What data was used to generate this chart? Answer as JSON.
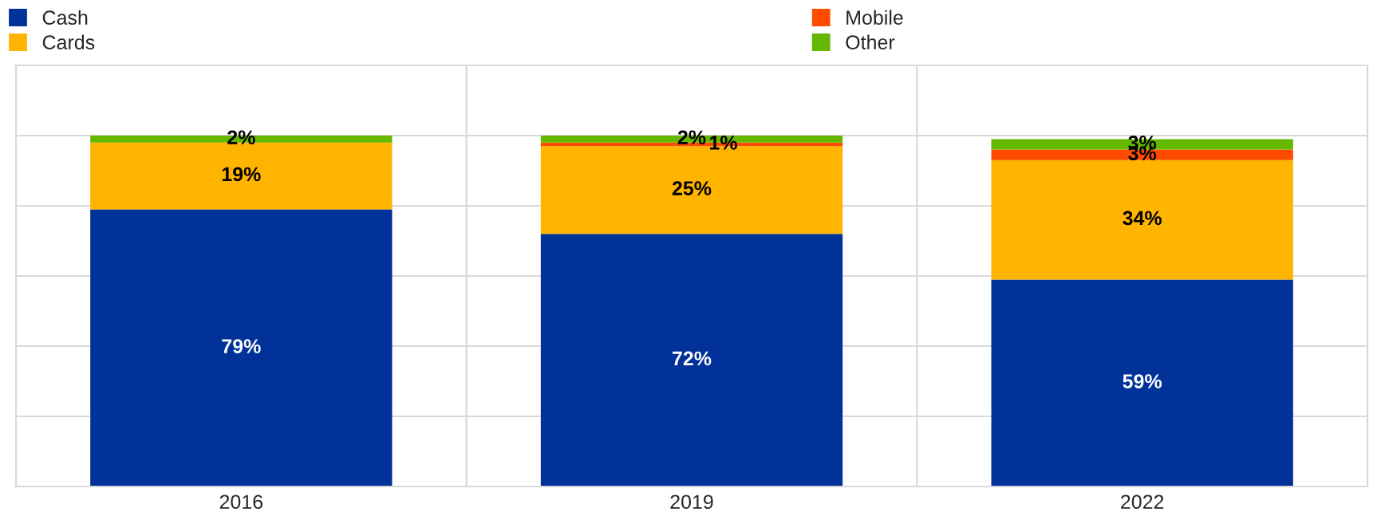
{
  "chart_data": {
    "type": "bar",
    "stacked": true,
    "categories": [
      "2016",
      "2019",
      "2022"
    ],
    "series": [
      {
        "name": "Cash",
        "color": "#003299",
        "values": [
          79,
          72,
          59
        ],
        "value_labels": [
          "79%",
          "72%",
          "59%"
        ]
      },
      {
        "name": "Cards",
        "color": "#ffb400",
        "values": [
          19,
          25,
          34
        ],
        "value_labels": [
          "19%",
          "25%",
          "34%"
        ]
      },
      {
        "name": "Mobile",
        "color": "#ff4b00",
        "values": [
          null,
          1,
          3
        ],
        "value_labels": [
          null,
          "1%",
          "3%"
        ]
      },
      {
        "name": "Other",
        "color": "#65b800",
        "values": [
          2,
          2,
          3
        ],
        "value_labels": [
          "2%",
          "2%",
          "3%"
        ]
      }
    ],
    "tick_labels": "x",
    "grid": true,
    "legend": "top"
  }
}
